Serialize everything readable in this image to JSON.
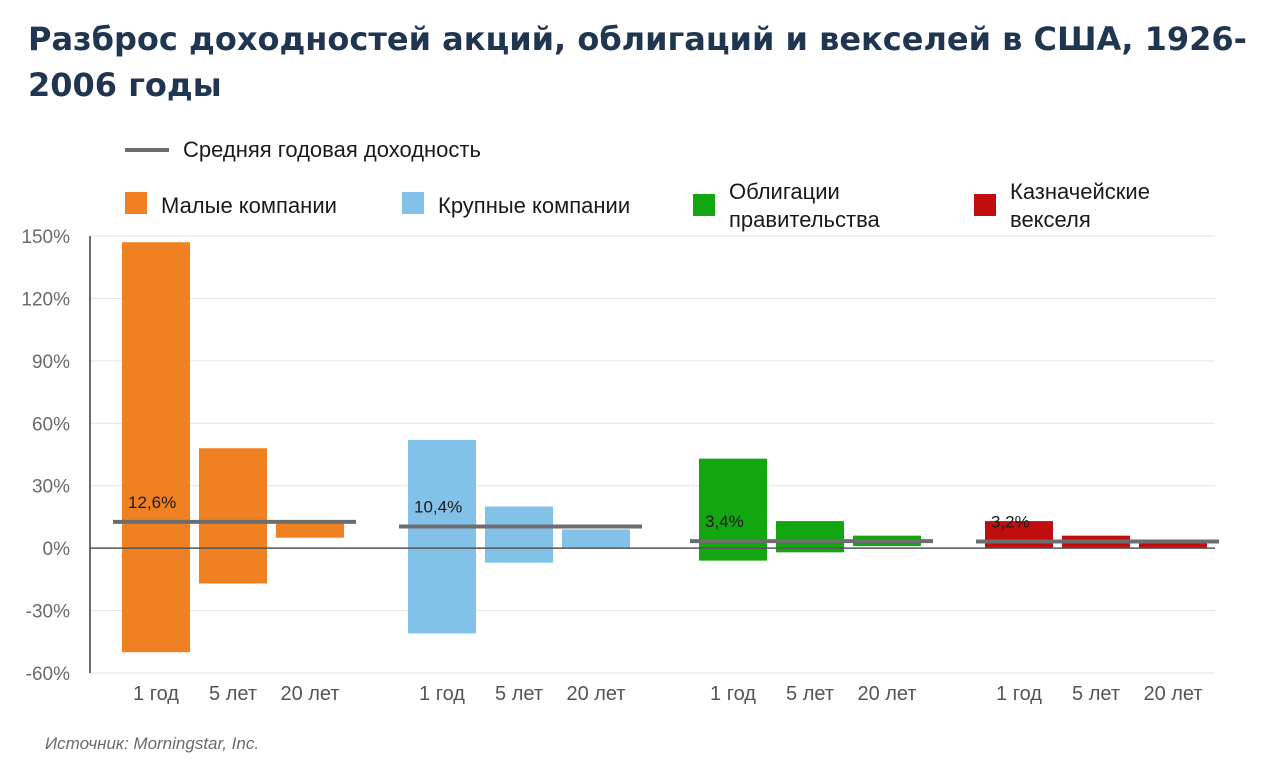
{
  "title": "Разброс доходностей акций, облигаций и векселей в США, 1926-2006 годы",
  "source": "Источник: Morningstar, Inc.",
  "legend": {
    "average_label": "Средняя годовая доходность",
    "average_color": "#6d6d6d",
    "items": [
      {
        "label": "Малые компании",
        "color": "#f08122"
      },
      {
        "label": "Крупные компании",
        "color": "#82c1e8"
      },
      {
        "label": "Облигации\nправительства",
        "color": "#12a611"
      },
      {
        "label": "Казначейские\nвекселя",
        "color": "#c00d0f"
      }
    ]
  },
  "chart_data": {
    "type": "bar",
    "title": "Разброс доходностей акций, облигаций и векселей в США, 1926-2006 годы",
    "ylim": [
      -60,
      150
    ],
    "yticks": [
      -60,
      -30,
      0,
      30,
      60,
      90,
      120,
      150
    ],
    "ytick_labels": [
      "-60%",
      "-30%",
      "0%",
      "30%",
      "60%",
      "90%",
      "120%",
      "150%"
    ],
    "grid": true,
    "groups": [
      {
        "name": "Малые компании",
        "color": "#f08122",
        "average": 12.6,
        "average_label": "12,6%",
        "bars": [
          {
            "period": "1 год",
            "min": -50,
            "max": 147
          },
          {
            "period": "5 лет",
            "min": -17,
            "max": 48
          },
          {
            "period": "20 лет",
            "min": 5,
            "max": 13
          }
        ]
      },
      {
        "name": "Крупные компании",
        "color": "#82c1e8",
        "average": 10.4,
        "average_label": "10,4%",
        "bars": [
          {
            "period": "1 год",
            "min": -41,
            "max": 52
          },
          {
            "period": "5 лет",
            "min": -7,
            "max": 20
          },
          {
            "period": "20 лет",
            "min": 0,
            "max": 9
          }
        ]
      },
      {
        "name": "Облигации правительства",
        "color": "#12a611",
        "average": 3.4,
        "average_label": "3,4%",
        "bars": [
          {
            "period": "1 год",
            "min": -6,
            "max": 43
          },
          {
            "period": "5 лет",
            "min": -2,
            "max": 13
          },
          {
            "period": "20 лет",
            "min": 1,
            "max": 6
          }
        ]
      },
      {
        "name": "Казначейские векселя",
        "color": "#c00d0f",
        "average": 3.2,
        "average_label": "3,2%",
        "bars": [
          {
            "period": "1 год",
            "min": 0,
            "max": 13
          },
          {
            "period": "5 лет",
            "min": 0,
            "max": 6
          },
          {
            "period": "20 лет",
            "min": 0,
            "max": 3
          }
        ]
      }
    ]
  }
}
